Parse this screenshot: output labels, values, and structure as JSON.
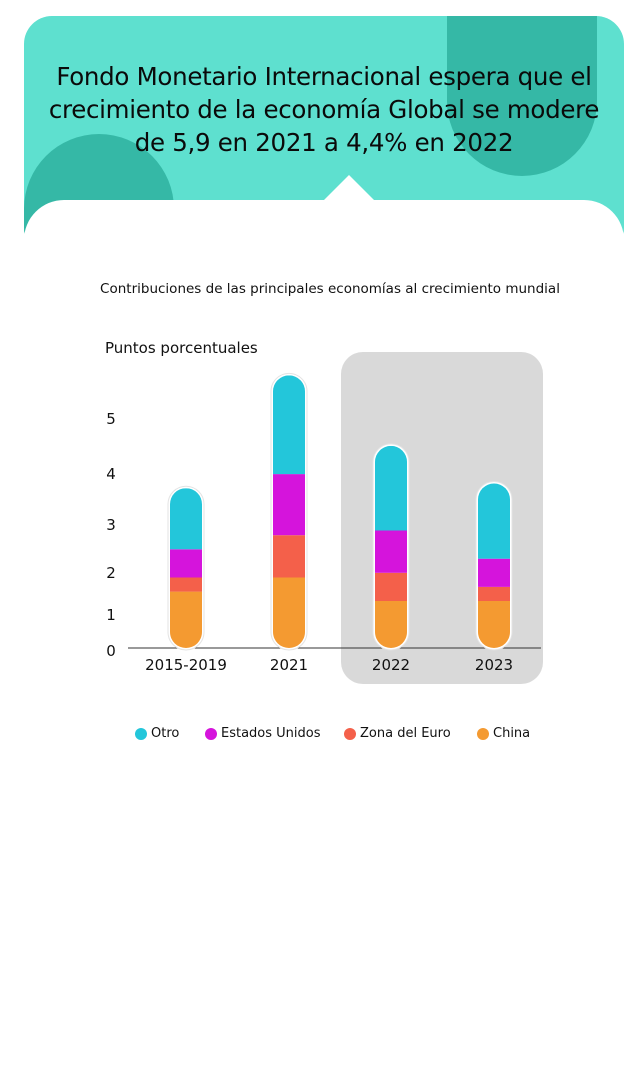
{
  "header": {
    "title": "Fondo Monetario Internacional espera que el crecimiento de la economía Global se modere de 5,9 en 2021 a 4,4% en 2022"
  },
  "colors": {
    "header_bg": "#5ee0cf",
    "header_accent": "#35b8a6",
    "highlight_panel": "#d9d9d9"
  },
  "chart_data": {
    "type": "bar",
    "stacked": true,
    "title": "Contribuciones de las principales economías al crecimiento mundial",
    "ylabel": "Puntos porcentuales",
    "xlabel": "",
    "categories": [
      "2015-2019",
      "2021",
      "2022",
      "2023"
    ],
    "highlighted_categories": [
      "2022",
      "2023"
    ],
    "y_ticks": [
      "0",
      "1",
      "2",
      "3",
      "4",
      "5"
    ],
    "ylim": [
      0,
      5.5
    ],
    "grid": false,
    "legend_position": "bottom",
    "series": [
      {
        "name": "China",
        "color": "#f49a31",
        "values": [
          1.2,
          1.5,
          1.0,
          1.0
        ]
      },
      {
        "name": "Zona del Euro",
        "color": "#f4604a",
        "values": [
          0.3,
          0.9,
          0.6,
          0.3
        ]
      },
      {
        "name": "Estados Unidos",
        "color": "#d514dc",
        "values": [
          0.6,
          1.3,
          0.9,
          0.6
        ]
      },
      {
        "name": "Otro",
        "color": "#23c6da",
        "values": [
          1.3,
          2.1,
          1.8,
          1.6
        ]
      }
    ],
    "legend": [
      {
        "name": "Otro",
        "color": "#23c6da"
      },
      {
        "name": "Estados Unidos",
        "color": "#d514dc"
      },
      {
        "name": "Zona del Euro",
        "color": "#f4604a"
      },
      {
        "name": "China",
        "color": "#f49a31"
      }
    ]
  }
}
